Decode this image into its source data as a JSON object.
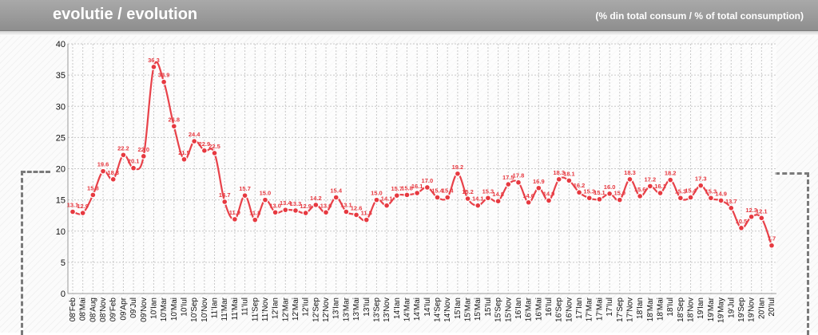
{
  "header": {
    "title": "evolutie / evolution",
    "subtitle": "(% din total consum / % of total consumption)"
  },
  "colors": {
    "header": "#999999",
    "line": "#e8424a",
    "marker_fill": "#e63940",
    "marker_stroke": "#ffffff",
    "grid": "#c8c8c8"
  },
  "chart_data": {
    "type": "line",
    "title": "",
    "xlabel": "",
    "ylabel": "",
    "ylim": [
      0,
      40
    ],
    "yticks": [
      0,
      5,
      10,
      15,
      20,
      25,
      30,
      35,
      40
    ],
    "grid": true,
    "categories": [
      "08'Feb",
      "08'Mai",
      "08'Aug",
      "08'Nov",
      "09'Feb",
      "09'Apr",
      "09'Jul",
      "09'Nov",
      "10'Ian",
      "10'Mar",
      "10'Mai",
      "10'Iul",
      "10'Sep",
      "10'Nov",
      "11'Ian",
      "11'Mar",
      "11'Mai",
      "11'Iul",
      "11'Sep",
      "11'Nov",
      "12'Ian",
      "12'Mar",
      "12'Mai",
      "12'Iul",
      "12'Sep",
      "12'Nov",
      "13'Ian",
      "13'Mar",
      "13'Mai",
      "13'Iul",
      "13'Sep",
      "13'Nov",
      "14'Ian",
      "14'Mar",
      "14'Mai",
      "14'Iul",
      "14'Sep",
      "14'Nov",
      "15'Ian",
      "15'Mar",
      "15'Mai",
      "15'Iul",
      "15'Sep",
      "15'Nov",
      "16'Ian",
      "16'Mar",
      "16'Mai",
      "16'Iul",
      "16'Sep",
      "16'Nov",
      "17'Ian",
      "17'Mar",
      "17'Mai",
      "17'Iul",
      "17'Sep",
      "17'Nov",
      "18'Ian",
      "18'Mar",
      "18'Mai",
      "18'Iul",
      "18'Sep",
      "18'Nov",
      "19'Ian",
      "19'Mar",
      "19'May",
      "19'Jul",
      "19'Sep",
      "19'Nov",
      "20'Ian",
      "20'Iul"
    ],
    "series": [
      {
        "values": [
          13.1,
          12.9,
          15.8,
          19.6,
          18.3,
          22.2,
          20.1,
          22.0,
          36.3,
          33.9,
          26.8,
          21.5,
          24.4,
          22.9,
          22.5,
          14.7,
          11.9,
          15.7,
          11.8,
          15.0,
          13.0,
          13.4,
          13.3,
          12.9,
          14.2,
          13.0,
          15.4,
          13.1,
          12.6,
          11.8,
          15.0,
          14.1,
          15.7,
          15.8,
          16.1,
          17.0,
          15.4,
          15.4,
          19.2,
          15.2,
          14.1,
          15.3,
          14.8,
          17.5,
          17.8,
          14.6,
          16.9,
          14.9,
          18.3,
          18.1,
          16.2,
          15.3,
          15.1,
          16.0,
          15.0,
          18.3,
          15.6,
          17.2,
          16.1,
          18.2,
          15.3,
          15.4,
          17.3,
          15.3,
          14.9,
          13.7,
          10.5,
          12.3,
          12.1,
          7.7
        ],
        "labels": [
          "13.1",
          "12.9",
          "15.8",
          "19.6",
          "18.3",
          "22.2",
          "20.1",
          "22.0",
          "36.3",
          "33.9",
          "26.8",
          "21.5",
          "24.4",
          "22.9",
          "22.5",
          "14.7",
          "11.9",
          "15.7",
          "11.8",
          "15.0",
          "13.0",
          "13.4",
          "13.3",
          "12.9",
          "14.2",
          "13.0",
          "15.4",
          "13.1",
          "12.6",
          "11.8",
          "15.0",
          "14.1",
          "15.7",
          "15.8",
          "16.1",
          "17.0",
          "15.4",
          "15.4",
          "19.2",
          "15.2",
          "14.1",
          "15.3",
          "14.8",
          "17.5",
          "17.8",
          "14.6",
          "16.9",
          "14.9",
          "18.3",
          "18.1",
          "16.2",
          "15.3",
          "15.1",
          "16.0",
          "15.0",
          "18.3",
          "15.6",
          "17.2",
          "16.1",
          "18.2",
          "15.3",
          "15.4",
          "17.3",
          "15.3",
          "14.9",
          "13.7",
          "10.5",
          "12.3",
          "12.1",
          "7.7"
        ]
      }
    ]
  }
}
